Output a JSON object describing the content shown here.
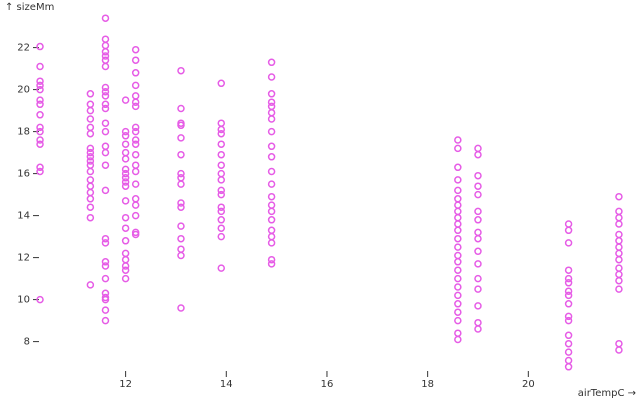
{
  "chart_data": {
    "type": "scatter",
    "x_label": "airTempC →",
    "y_label": "↑ sizeMm",
    "color": "#e65ce6",
    "xlim": [
      10.2,
      22.0
    ],
    "ylim": [
      6.6,
      23.6
    ],
    "xticks": [
      12,
      14,
      16,
      18,
      20
    ],
    "yticks": [
      8,
      10,
      12,
      14,
      16,
      18,
      20,
      22
    ],
    "grid": false,
    "x": [
      10.3,
      10.3,
      10.3,
      10.3,
      10.3,
      10.3,
      10.3,
      10.3,
      10.3,
      10.3,
      10.3,
      10.3,
      10.3,
      10.3,
      10.3,
      11.3,
      11.3,
      11.3,
      11.3,
      11.3,
      11.3,
      11.3,
      11.3,
      11.3,
      11.3,
      11.3,
      11.3,
      11.3,
      11.3,
      11.3,
      11.3,
      11.3,
      11.3,
      11.3,
      11.6,
      11.6,
      11.6,
      11.6,
      11.6,
      11.6,
      11.6,
      11.6,
      11.6,
      11.6,
      11.6,
      11.6,
      11.6,
      11.6,
      11.6,
      11.6,
      11.6,
      11.6,
      11.6,
      11.6,
      11.6,
      11.6,
      11.6,
      11.6,
      11.6,
      11.6,
      11.6,
      11.6,
      12.0,
      12.0,
      12.0,
      12.0,
      12.0,
      12.0,
      12.0,
      12.0,
      12.0,
      12.0,
      12.0,
      12.0,
      12.0,
      12.0,
      12.0,
      12.0,
      12.0,
      12.0,
      12.0,
      12.0,
      12.2,
      12.2,
      12.2,
      12.2,
      12.2,
      12.2,
      12.2,
      12.2,
      12.2,
      12.2,
      12.2,
      12.2,
      12.2,
      12.2,
      12.2,
      12.2,
      12.2,
      12.2,
      12.2,
      12.2,
      13.1,
      13.1,
      13.1,
      13.1,
      13.1,
      13.1,
      13.1,
      13.1,
      13.1,
      13.1,
      13.1,
      13.1,
      13.1,
      13.1,
      13.1,
      13.1,
      13.9,
      13.9,
      13.9,
      13.9,
      13.9,
      13.9,
      13.9,
      13.9,
      13.9,
      13.9,
      13.9,
      13.9,
      13.9,
      13.9,
      13.9,
      13.9,
      13.9,
      14.9,
      14.9,
      14.9,
      14.9,
      14.9,
      14.9,
      14.9,
      14.9,
      14.9,
      14.9,
      14.9,
      14.9,
      14.9,
      14.9,
      14.9,
      14.9,
      14.9,
      14.9,
      14.9,
      14.9,
      14.9,
      18.6,
      18.6,
      18.6,
      18.6,
      18.6,
      18.6,
      18.6,
      18.6,
      18.6,
      18.6,
      18.6,
      18.6,
      18.6,
      18.6,
      18.6,
      18.6,
      18.6,
      18.6,
      18.6,
      18.6,
      18.6,
      18.6,
      18.6,
      18.6,
      19.0,
      19.0,
      19.0,
      19.0,
      19.0,
      19.0,
      19.0,
      19.0,
      19.0,
      19.0,
      19.0,
      19.0,
      19.0,
      19.0,
      19.0,
      19.0,
      20.8,
      20.8,
      20.8,
      20.8,
      20.8,
      20.8,
      20.8,
      20.8,
      20.8,
      20.8,
      20.8,
      20.8,
      20.8,
      20.8,
      20.8,
      20.8,
      21.8,
      21.8,
      21.8,
      21.8,
      21.8,
      21.8,
      21.8,
      21.8,
      21.8,
      21.8,
      21.8,
      21.8,
      21.8,
      21.8,
      21.8
    ],
    "y": [
      22.05,
      21.1,
      20.4,
      20.2,
      20.0,
      19.5,
      19.3,
      18.8,
      18.2,
      18.0,
      17.6,
      17.4,
      16.3,
      16.1,
      10.0,
      19.8,
      19.3,
      19.0,
      18.6,
      18.2,
      17.9,
      17.2,
      17.0,
      16.8,
      16.6,
      16.4,
      16.1,
      15.7,
      15.4,
      15.1,
      14.8,
      14.4,
      13.9,
      10.7,
      23.4,
      22.4,
      22.1,
      21.8,
      21.6,
      21.4,
      21.1,
      20.1,
      19.9,
      19.7,
      19.3,
      19.1,
      18.4,
      18.0,
      17.3,
      17.0,
      16.4,
      15.2,
      12.9,
      12.7,
      11.8,
      11.6,
      11.0,
      10.3,
      10.1,
      10.0,
      9.5,
      9.0,
      19.5,
      18.0,
      17.8,
      17.4,
      17.0,
      16.7,
      16.2,
      16.0,
      15.8,
      15.6,
      15.4,
      14.7,
      13.9,
      13.4,
      12.8,
      12.2,
      11.9,
      11.6,
      11.4,
      11.0,
      21.9,
      21.4,
      20.8,
      20.2,
      19.7,
      19.4,
      19.2,
      18.2,
      18.0,
      17.6,
      17.4,
      16.9,
      16.4,
      16.1,
      15.5,
      14.8,
      14.5,
      14.0,
      13.2,
      13.1,
      20.9,
      19.1,
      18.4,
      18.3,
      17.7,
      16.9,
      16.0,
      15.8,
      15.5,
      14.6,
      14.4,
      13.5,
      12.9,
      12.4,
      12.1,
      9.6,
      20.3,
      18.4,
      18.1,
      17.9,
      17.4,
      16.9,
      16.4,
      16.0,
      15.7,
      15.2,
      15.0,
      14.4,
      14.2,
      13.8,
      13.4,
      13.0,
      11.5,
      21.3,
      20.6,
      19.8,
      19.4,
      19.2,
      18.9,
      18.6,
      18.0,
      17.3,
      16.8,
      16.1,
      15.5,
      14.9,
      14.5,
      14.2,
      13.8,
      13.3,
      13.0,
      12.7,
      11.9,
      11.7,
      17.6,
      17.2,
      16.3,
      15.7,
      15.2,
      14.8,
      14.5,
      14.2,
      13.9,
      13.6,
      13.3,
      12.9,
      12.5,
      12.1,
      11.8,
      11.4,
      11.0,
      10.6,
      10.2,
      9.8,
      9.4,
      9.0,
      8.4,
      8.1,
      17.2,
      16.9,
      15.9,
      15.4,
      15.0,
      14.2,
      13.8,
      13.2,
      12.9,
      12.3,
      11.7,
      11.0,
      10.5,
      9.7,
      8.9,
      8.6,
      13.6,
      13.3,
      12.7,
      11.4,
      11.0,
      10.8,
      10.4,
      10.2,
      9.8,
      9.2,
      9.0,
      8.3,
      7.9,
      7.5,
      7.1,
      6.8,
      14.9,
      14.2,
      13.9,
      13.6,
      13.1,
      12.8,
      12.5,
      12.2,
      11.9,
      11.5,
      11.2,
      10.9,
      10.5,
      7.9,
      7.6
    ]
  }
}
